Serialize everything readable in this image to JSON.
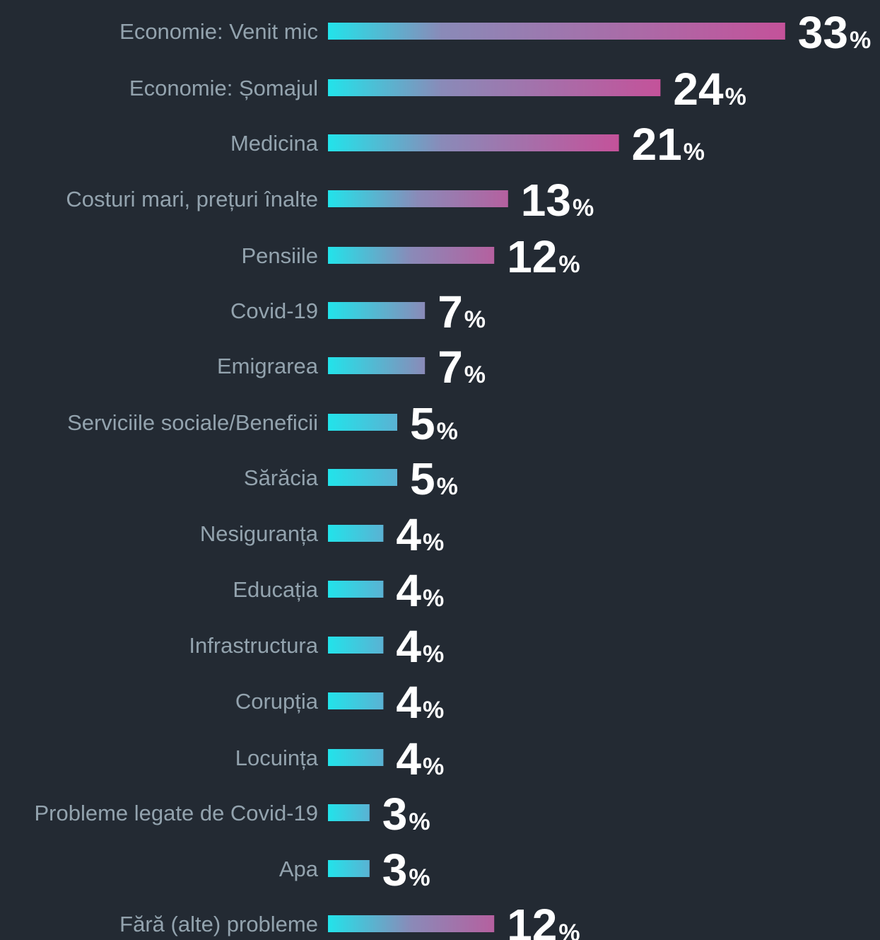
{
  "chart_data": {
    "type": "bar",
    "orientation": "horizontal",
    "categories": [
      "Economie: Venit mic",
      "Economie: Șomajul",
      "Medicina",
      "Costuri mari, prețuri înalte",
      "Pensiile",
      "Covid-19",
      "Emigrarea",
      "Serviciile sociale/Beneficii",
      "Sărăcia",
      "Nesiguranța",
      "Educația",
      "Infrastructura",
      "Corupția",
      "Locuința",
      "Probleme legate de Covid-19",
      "Apa",
      "Fără (alte) probleme"
    ],
    "values": [
      33,
      24,
      21,
      13,
      12,
      7,
      7,
      5,
      5,
      4,
      4,
      4,
      4,
      4,
      3,
      3,
      12
    ],
    "value_suffix": "%",
    "title": "",
    "xlabel": "",
    "ylabel": "",
    "grid": false,
    "legend": "none"
  },
  "colors": {
    "background": "#232a33",
    "bar_start": "#22e3ea",
    "bar_mid": "#8a8ab8",
    "bar_end": "#c4529a",
    "label": "#93a3ae",
    "value": "#ffffff"
  }
}
